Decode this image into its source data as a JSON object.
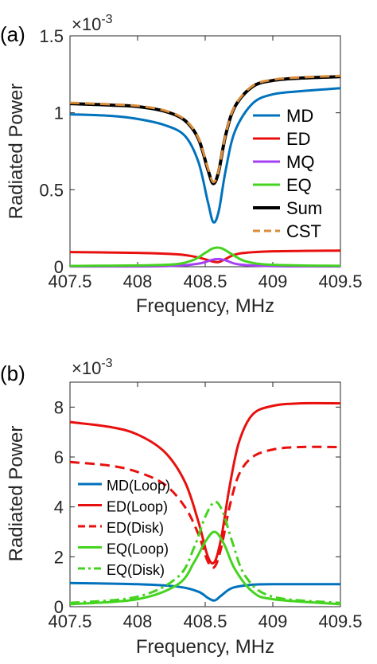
{
  "chart_data": [
    {
      "panel_label": "(a)",
      "type": "line",
      "xlabel": "Frequency, MHz",
      "ylabel": "Radiated Power",
      "y_exponent": "×10",
      "y_exponent_power": "-3",
      "xlim": [
        407.5,
        409.5
      ],
      "ylim": [
        0,
        1.5
      ],
      "xticks": [
        "407.5",
        "408",
        "408.5",
        "409",
        "409.5"
      ],
      "yticks": [
        "0",
        "0.5",
        "1",
        "1.5"
      ],
      "legend_position": "right",
      "series": [
        {
          "name": "MD",
          "color": "#0072BD",
          "style": "solid",
          "x": [
            407.5,
            407.8,
            408.0,
            408.2,
            408.35,
            408.45,
            408.52,
            408.56,
            408.6,
            408.65,
            408.72,
            408.85,
            409.0,
            409.2,
            409.5
          ],
          "y": [
            0.99,
            0.98,
            0.96,
            0.92,
            0.85,
            0.68,
            0.42,
            0.29,
            0.36,
            0.62,
            0.88,
            1.06,
            1.12,
            1.14,
            1.16
          ]
        },
        {
          "name": "ED",
          "color": "#E8100E",
          "style": "solid",
          "x": [
            407.5,
            408.0,
            408.3,
            408.45,
            408.55,
            408.6,
            408.65,
            408.75,
            409.0,
            409.5
          ],
          "y": [
            0.095,
            0.09,
            0.08,
            0.06,
            0.035,
            0.03,
            0.05,
            0.085,
            0.1,
            0.105
          ]
        },
        {
          "name": "MQ",
          "color": "#A541F4",
          "style": "solid",
          "x": [
            407.5,
            408.2,
            408.45,
            408.55,
            408.6,
            408.65,
            408.75,
            409.0,
            409.5
          ],
          "y": [
            0.002,
            0.004,
            0.02,
            0.045,
            0.05,
            0.042,
            0.015,
            0.004,
            0.002
          ]
        },
        {
          "name": "EQ",
          "color": "#44D31E",
          "style": "solid",
          "x": [
            407.5,
            408.2,
            408.4,
            408.5,
            408.56,
            408.62,
            408.7,
            408.8,
            409.0,
            409.5
          ],
          "y": [
            0.005,
            0.012,
            0.04,
            0.09,
            0.12,
            0.12,
            0.08,
            0.035,
            0.012,
            0.006
          ]
        },
        {
          "name": "Sum",
          "color": "#000000",
          "style": "solid",
          "x": [
            407.5,
            407.8,
            408.0,
            408.2,
            408.35,
            408.45,
            408.52,
            408.56,
            408.6,
            408.65,
            408.72,
            408.85,
            409.0,
            409.2,
            409.5
          ],
          "y": [
            1.06,
            1.05,
            1.04,
            1.01,
            0.95,
            0.83,
            0.63,
            0.54,
            0.62,
            0.85,
            1.04,
            1.17,
            1.21,
            1.225,
            1.235
          ]
        },
        {
          "name": "CST",
          "color": "#D98C3A",
          "style": "dashed",
          "x": [
            407.5,
            407.8,
            408.0,
            408.2,
            408.35,
            408.45,
            408.52,
            408.56,
            408.6,
            408.65,
            408.72,
            408.85,
            409.0,
            409.2,
            409.5
          ],
          "y": [
            1.065,
            1.055,
            1.045,
            1.015,
            0.955,
            0.835,
            0.64,
            0.55,
            0.625,
            0.855,
            1.045,
            1.175,
            1.215,
            1.23,
            1.24
          ]
        }
      ]
    },
    {
      "panel_label": "(b)",
      "type": "line",
      "xlabel": "Frequency, MHz",
      "ylabel": "Radiated Power",
      "y_exponent": "×10",
      "y_exponent_power": "-3",
      "xlim": [
        407.5,
        409.5
      ],
      "ylim": [
        0,
        9
      ],
      "xticks": [
        "407.5",
        "408",
        "408.5",
        "409",
        "409.5"
      ],
      "yticks": [
        "0",
        "2",
        "4",
        "6",
        "8"
      ],
      "legend_position": "left",
      "series": [
        {
          "name": "MD(Loop)",
          "color": "#0072BD",
          "style": "solid",
          "x": [
            407.5,
            408.0,
            408.3,
            408.45,
            408.52,
            408.57,
            408.62,
            408.7,
            408.85,
            409.0,
            409.5
          ],
          "y": [
            0.95,
            0.9,
            0.8,
            0.6,
            0.35,
            0.25,
            0.45,
            0.75,
            0.88,
            0.9,
            0.9
          ]
        },
        {
          "name": "ED(Loop)",
          "color": "#E8100E",
          "style": "solid",
          "x": [
            407.5,
            407.8,
            408.0,
            408.2,
            408.35,
            408.45,
            408.52,
            408.57,
            408.62,
            408.68,
            408.75,
            408.85,
            409.0,
            409.2,
            409.5
          ],
          "y": [
            7.4,
            7.2,
            6.9,
            6.2,
            5.0,
            3.4,
            2.0,
            1.8,
            2.8,
            4.8,
            6.6,
            7.7,
            8.05,
            8.15,
            8.15
          ]
        },
        {
          "name": "ED(Disk)",
          "color": "#E8100E",
          "style": "dashed",
          "x": [
            407.5,
            407.8,
            408.0,
            408.2,
            408.35,
            408.45,
            408.52,
            408.57,
            408.62,
            408.68,
            408.75,
            408.85,
            409.0,
            409.2,
            409.5
          ],
          "y": [
            5.8,
            5.65,
            5.4,
            4.9,
            4.0,
            2.9,
            1.8,
            1.6,
            2.4,
            4.0,
            5.3,
            6.0,
            6.3,
            6.4,
            6.4
          ]
        },
        {
          "name": "EQ(Loop)",
          "color": "#44D31E",
          "style": "solid",
          "x": [
            407.5,
            408.0,
            408.3,
            408.42,
            408.5,
            408.57,
            408.64,
            408.72,
            408.85,
            409.0,
            409.5
          ],
          "y": [
            0.1,
            0.3,
            0.9,
            1.8,
            2.6,
            3.0,
            2.5,
            1.5,
            0.6,
            0.3,
            0.1
          ]
        },
        {
          "name": "EQ(Disk)",
          "color": "#44D31E",
          "style": "dashdot",
          "x": [
            407.5,
            408.0,
            408.3,
            408.42,
            408.5,
            408.57,
            408.63,
            408.7,
            408.8,
            409.0,
            409.5
          ],
          "y": [
            0.15,
            0.4,
            1.2,
            2.4,
            3.6,
            4.2,
            3.8,
            2.6,
            1.2,
            0.4,
            0.15
          ]
        }
      ]
    }
  ]
}
